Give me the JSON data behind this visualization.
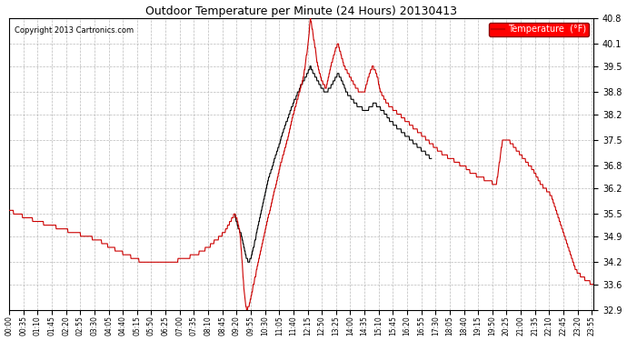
{
  "title": "Outdoor Temperature per Minute (24 Hours) 20130413",
  "copyright": "Copyright 2013 Cartronics.com",
  "legend_label": "Temperature  (°F)",
  "line_color": "#cc0000",
  "black_line_color": "#000000",
  "bg_color": "#ffffff",
  "grid_color": "#aaaaaa",
  "ylim": [
    32.9,
    40.8
  ],
  "yticks": [
    32.9,
    33.6,
    34.2,
    34.9,
    35.5,
    36.2,
    36.8,
    37.5,
    38.2,
    38.8,
    39.5,
    40.1,
    40.8
  ],
  "xtick_labels": [
    "00:00",
    "00:35",
    "01:10",
    "01:45",
    "02:20",
    "02:55",
    "03:30",
    "04:05",
    "04:40",
    "05:15",
    "05:50",
    "06:25",
    "07:00",
    "07:35",
    "08:10",
    "08:45",
    "09:20",
    "09:55",
    "10:30",
    "11:05",
    "11:40",
    "12:15",
    "12:50",
    "13:25",
    "14:00",
    "14:35",
    "15:10",
    "15:45",
    "16:20",
    "16:55",
    "17:30",
    "18:05",
    "18:40",
    "19:15",
    "19:50",
    "20:25",
    "21:00",
    "21:35",
    "22:10",
    "22:45",
    "23:20",
    "23:55"
  ],
  "n_minutes": 1440,
  "figwidth": 6.9,
  "figheight": 3.75,
  "dpi": 100
}
